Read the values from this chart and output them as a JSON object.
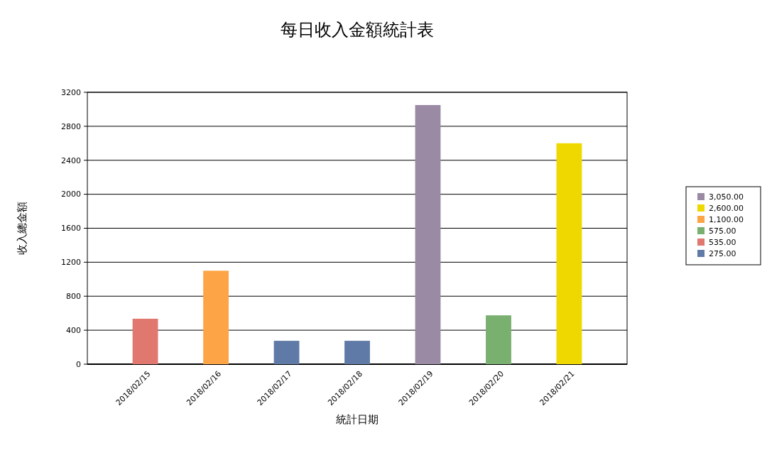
{
  "chart_data": {
    "type": "bar",
    "title": "每日收入金額統計表",
    "xlabel": "統計日期",
    "ylabel": "收入總金額",
    "categories": [
      "2018/02/15",
      "2018/02/16",
      "2018/02/17",
      "2018/02/18",
      "2018/02/19",
      "2018/02/20",
      "2018/02/21"
    ],
    "stacked": true,
    "series": [
      {
        "name": "3,050.00",
        "color": "#9b8aa4",
        "values": [
          null,
          null,
          null,
          null,
          3050,
          null,
          null
        ]
      },
      {
        "name": "2,600.00",
        "color": "#eed800",
        "values": [
          null,
          null,
          null,
          null,
          null,
          null,
          2600
        ]
      },
      {
        "name": "1,100.00",
        "color": "#fda446",
        "values": [
          null,
          1100,
          null,
          null,
          null,
          null,
          null
        ]
      },
      {
        "name": "575.00",
        "color": "#79b070",
        "values": [
          null,
          null,
          null,
          null,
          null,
          575,
          null
        ]
      },
      {
        "name": "535.00",
        "color": "#e07870",
        "values": [
          535,
          null,
          null,
          null,
          null,
          null,
          null
        ]
      },
      {
        "name": "275.00",
        "color": "#5f7aa6",
        "values": [
          null,
          null,
          275,
          275,
          null,
          null,
          null
        ]
      }
    ],
    "ylim": [
      0,
      3200
    ],
    "yticks": [
      0,
      400,
      800,
      1200,
      1600,
      2000,
      2400,
      2800,
      3200
    ],
    "grid": "y",
    "legend": "right"
  }
}
